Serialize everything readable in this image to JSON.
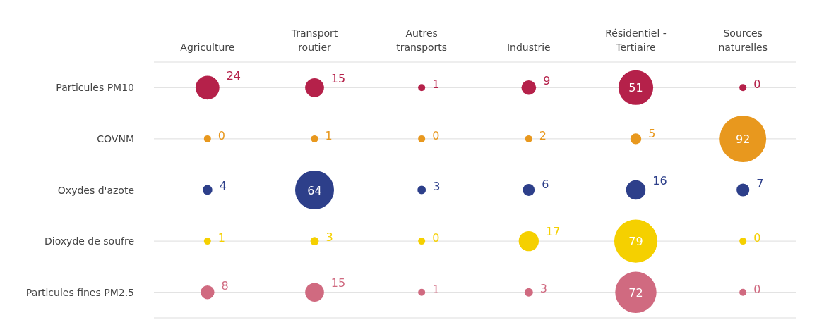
{
  "chart_data": {
    "type": "other",
    "categories": [
      "Agriculture",
      "Transport\nroutier",
      "Autres\ntransports",
      "Industrie",
      "Résidentiel -\nTertiaire",
      "Sources\nnaturelles"
    ],
    "y_categories": [
      "Particules PM10",
      "COVNM",
      "Oxydes d'azote",
      "Dioxyde de soufre",
      "Particules fines PM2.5"
    ],
    "series": [
      {
        "color": "#b5214a",
        "values": [
          24,
          15,
          1,
          9,
          51,
          0
        ]
      },
      {
        "color": "#e8981e",
        "values": [
          0,
          1,
          0,
          2,
          5,
          92
        ]
      },
      {
        "color": "#2d3f8a",
        "values": [
          4,
          64,
          3,
          6,
          16,
          7
        ]
      },
      {
        "color": "#f5d000",
        "values": [
          1,
          3,
          0,
          17,
          79,
          0
        ]
      },
      {
        "color": "#d06a80",
        "values": [
          8,
          15,
          1,
          3,
          72,
          0
        ]
      }
    ],
    "data_labels": true,
    "legend": false
  }
}
